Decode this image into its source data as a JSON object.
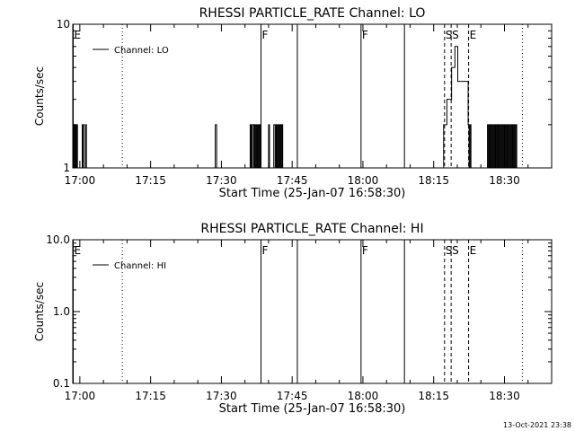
{
  "footer_timestamp": "13-Oct-2021 23:38",
  "chart_data": [
    {
      "type": "line",
      "title": "RHESSI PARTICLE_RATE Channel: LO",
      "xlabel": "Start Time (25-Jan-07 16:58:30)",
      "ylabel": "Counts/sec",
      "x_unit": "minutes since 16:58:30",
      "xlim": [
        0,
        101.5
      ],
      "ylim": [
        1,
        10
      ],
      "yscale": "log",
      "ytick_labels": [
        "1",
        "10"
      ],
      "ytick_values": [
        1,
        10
      ],
      "xtick_labels": [
        "17:00",
        "17:15",
        "17:30",
        "17:45",
        "18:00",
        "18:15",
        "18:30"
      ],
      "xtick_values": [
        1.5,
        16.5,
        31.5,
        46.5,
        61.5,
        76.5,
        91.5
      ],
      "legend": {
        "label": "Channel: LO",
        "position": "top-left"
      },
      "series": [
        {
          "name": "Channel: LO",
          "x": [
            0,
            0.1,
            0.2,
            0.3,
            0.5,
            0.6,
            0.7,
            0.9,
            1.0,
            1.1,
            2.0,
            2.0,
            2.1,
            2.2,
            2.5,
            2.7,
            2.8,
            2.9,
            30.2,
            30.2,
            30.5,
            30.5,
            30.6,
            37.6,
            37.6,
            37.8,
            38.0,
            38.3,
            38.4,
            38.6,
            38.8,
            38.9,
            39.1,
            39.2,
            39.4,
            39.6,
            39.7,
            39.9,
            40.2,
            41.4,
            41.5,
            41.7,
            41.8,
            42.6,
            42.6,
            42.9,
            43.1,
            43.2,
            43.4,
            43.5,
            43.7,
            43.9,
            44.0,
            44.2,
            44.4,
            44.5,
            44.7,
            45.0,
            78.5,
            78.6,
            79.0,
            79.3,
            79.3,
            80.3,
            81.0,
            81.6,
            83.8,
            84.0,
            84.2,
            84.2,
            84.4,
            87.8,
            87.9,
            88.0,
            88.2,
            88.4,
            88.5,
            88.7,
            88.9,
            89.0,
            89.2,
            89.4,
            89.6,
            89.7,
            89.9,
            90.1,
            90.2,
            90.4,
            90.6,
            90.8,
            91.0,
            91.1,
            91.3,
            91.5,
            91.6,
            91.8,
            92.0,
            92.1,
            92.3,
            92.5,
            92.7,
            92.8,
            93.0,
            93.2,
            93.3,
            93.5,
            93.7,
            93.9,
            94.1,
            94.2
          ],
          "y": [
            1,
            2,
            1,
            2,
            1,
            2,
            1,
            2,
            1,
            1,
            1,
            2,
            1,
            2,
            1,
            1,
            2,
            1,
            1,
            2,
            2,
            1,
            1,
            1,
            2,
            1,
            2,
            1,
            2,
            1,
            2,
            1,
            2,
            1,
            2,
            1,
            2,
            1,
            1,
            1,
            2,
            1,
            1,
            1,
            2,
            1,
            2,
            1,
            2,
            1,
            2,
            1,
            2,
            1,
            2,
            1,
            1,
            1,
            1,
            2,
            2,
            2,
            3,
            5,
            7,
            4,
            2,
            1,
            1,
            2,
            1,
            1,
            2,
            1,
            2,
            1,
            2,
            1,
            2,
            1,
            2,
            1,
            2,
            1,
            2,
            1,
            2,
            1,
            2,
            1,
            2,
            1,
            2,
            1,
            2,
            1,
            2,
            1,
            2,
            1,
            2,
            1,
            2,
            1,
            2,
            1,
            2,
            1,
            2,
            2
          ]
        }
      ],
      "event_lines": [
        {
          "x": 0.1,
          "style": "solid",
          "label": "E"
        },
        {
          "x": 10.5,
          "style": "dotted",
          "label": ""
        },
        {
          "x": 39.9,
          "style": "solid",
          "label": "F"
        },
        {
          "x": 47.6,
          "style": "solid",
          "label": ""
        },
        {
          "x": 61.1,
          "style": "solid",
          "label": "F"
        },
        {
          "x": 70.3,
          "style": "solid",
          "label": ""
        },
        {
          "x": 78.8,
          "style": "dashed",
          "label": "S"
        },
        {
          "x": 80.2,
          "style": "dashed",
          "label": "S"
        },
        {
          "x": 83.9,
          "style": "dashed",
          "label": "E"
        },
        {
          "x": 95.3,
          "style": "dotted",
          "label": ""
        }
      ]
    },
    {
      "type": "line",
      "title": "RHESSI PARTICLE_RATE Channel: HI",
      "xlabel": "Start Time (25-Jan-07 16:58:30)",
      "ylabel": "Counts/sec",
      "x_unit": "minutes since 16:58:30",
      "xlim": [
        0,
        101.5
      ],
      "ylim": [
        0.1,
        10
      ],
      "yscale": "log",
      "ytick_labels": [
        "0.1",
        "1.0",
        "10.0"
      ],
      "ytick_values": [
        0.1,
        1,
        10
      ],
      "xtick_labels": [
        "17:00",
        "17:15",
        "17:30",
        "17:45",
        "18:00",
        "18:15",
        "18:30"
      ],
      "xtick_values": [
        1.5,
        16.5,
        31.5,
        46.5,
        61.5,
        76.5,
        91.5
      ],
      "legend": {
        "label": "Channel: HI",
        "position": "top-left"
      },
      "series": [
        {
          "name": "Channel: HI",
          "x": [],
          "y": []
        }
      ],
      "event_lines": [
        {
          "x": 0.1,
          "style": "solid",
          "label": "E"
        },
        {
          "x": 10.5,
          "style": "dotted",
          "label": ""
        },
        {
          "x": 39.9,
          "style": "solid",
          "label": "F"
        },
        {
          "x": 47.6,
          "style": "solid",
          "label": ""
        },
        {
          "x": 61.1,
          "style": "solid",
          "label": "F"
        },
        {
          "x": 70.3,
          "style": "solid",
          "label": ""
        },
        {
          "x": 78.8,
          "style": "dashed",
          "label": "S"
        },
        {
          "x": 80.2,
          "style": "dashed",
          "label": "S"
        },
        {
          "x": 83.9,
          "style": "dashed",
          "label": "E"
        },
        {
          "x": 95.3,
          "style": "dotted",
          "label": ""
        }
      ]
    }
  ]
}
